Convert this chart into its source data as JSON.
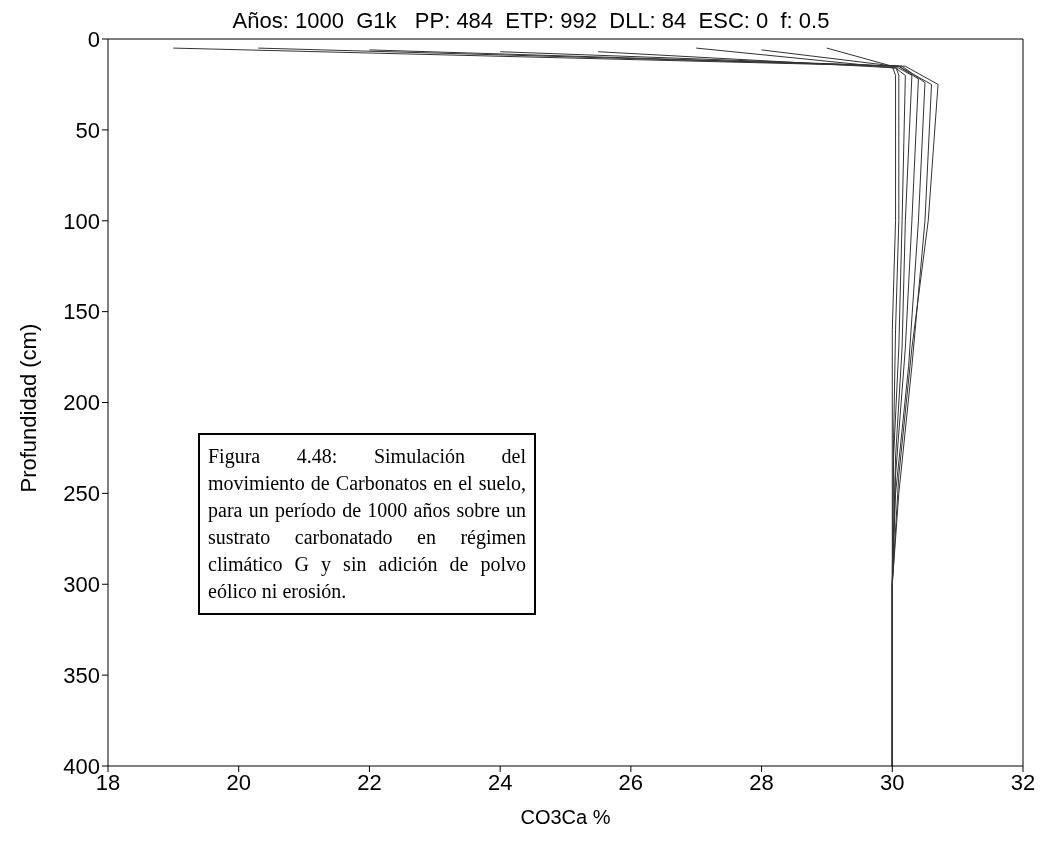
{
  "chart_data": {
    "type": "line",
    "title": "Años: 1000  G1k   PP: 484  ETP: 992  DLL: 84  ESC: 0  f: 0.5",
    "xlabel": "CO3Ca %",
    "ylabel": "Profundidad (cm)",
    "xlim": [
      18,
      32
    ],
    "xticks": [
      18,
      20,
      22,
      24,
      26,
      28,
      30,
      32
    ],
    "ylim": [
      400,
      0
    ],
    "yticks": [
      0,
      50,
      100,
      150,
      200,
      250,
      300,
      350,
      400
    ],
    "grid": false,
    "marker": "none",
    "line_style": "solid",
    "series": [
      {
        "color": "#333333",
        "x": [
          19.0,
          30.1,
          30.6,
          30.5,
          30.3,
          30.1,
          30.0,
          30.0
        ],
        "values": [
          5,
          15,
          25,
          100,
          180,
          250,
          300,
          400
        ]
      },
      {
        "color": "#333333",
        "x": [
          20.3,
          30.2,
          30.7,
          30.55,
          30.3,
          30.1,
          30.0,
          30.0
        ],
        "values": [
          5,
          15,
          25,
          100,
          170,
          240,
          300,
          400
        ]
      },
      {
        "color": "#333333",
        "x": [
          22.0,
          30.15,
          30.5,
          30.4,
          30.25,
          30.05,
          30.0,
          30.0
        ],
        "values": [
          6,
          15,
          24,
          100,
          180,
          250,
          300,
          400
        ]
      },
      {
        "color": "#333333",
        "x": [
          24.0,
          30.1,
          30.4,
          30.3,
          30.2,
          30.05,
          30.0,
          30.0
        ],
        "values": [
          7,
          15,
          22,
          100,
          170,
          240,
          300,
          400
        ]
      },
      {
        "color": "#333333",
        "x": [
          25.5,
          30.1,
          30.3,
          30.2,
          30.15,
          30.05,
          30.0,
          30.0
        ],
        "values": [
          7,
          16,
          20,
          100,
          170,
          230,
          300,
          400
        ]
      },
      {
        "color": "#333333",
        "x": [
          27.0,
          30.05,
          30.2,
          30.15,
          30.1,
          30.02,
          30.0,
          30.0
        ],
        "values": [
          5,
          16,
          20,
          100,
          170,
          230,
          300,
          400
        ]
      },
      {
        "color": "#333333",
        "x": [
          28.0,
          30.05,
          30.1,
          30.1,
          30.05,
          30.02,
          30.0,
          30.0
        ],
        "values": [
          6,
          15,
          20,
          100,
          160,
          220,
          300,
          400
        ]
      },
      {
        "color": "#333333",
        "x": [
          29.0,
          30.0,
          30.05,
          30.05,
          30.0,
          30.0,
          30.0,
          30.0
        ],
        "values": [
          5,
          15,
          20,
          100,
          160,
          220,
          300,
          400
        ]
      }
    ],
    "annotations": [
      "Figura 4.48: Simulación del movimiento de Carbonatos en el suelo, para un período de 1000 años sobre un sustrato carbonatado en régimen climático G y sin adición de polvo eólico ni erosión."
    ]
  }
}
